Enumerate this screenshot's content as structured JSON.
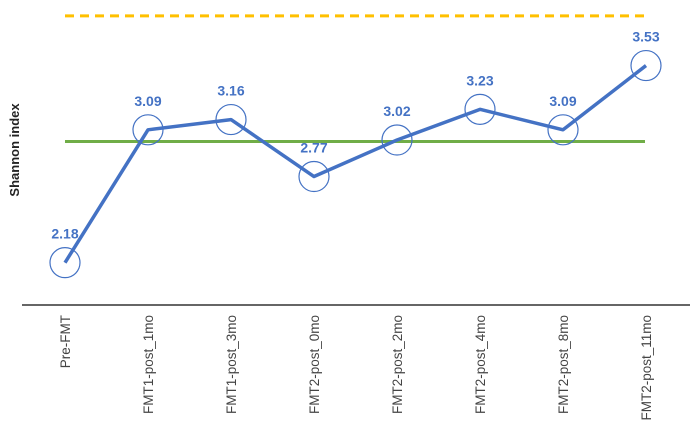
{
  "chart_data": {
    "type": "line",
    "title": "",
    "xlabel": "",
    "ylabel": "Shannon index",
    "categories": [
      "Pre-FMT",
      "FMT1-post_1mo",
      "FMT1-post_3mo",
      "FMT2-post_0mo",
      "FMT2-post_2mo",
      "FMT2-post_4mo",
      "FMT2-post_8mo",
      "FMT2-post_11mo"
    ],
    "series": [
      {
        "name": "Shannon index",
        "values": [
          2.18,
          3.09,
          3.16,
          2.77,
          3.02,
          3.23,
          3.09,
          3.53
        ],
        "labels": [
          "2.18",
          "3.09",
          "3.16",
          "2.77",
          "3.02",
          "3.23",
          "3.09",
          "3.53"
        ],
        "color": "#4472C4"
      }
    ],
    "reference_lines": [
      {
        "name": "green-reference",
        "value": 3.01,
        "color": "#70AD47",
        "style": "solid"
      },
      {
        "name": "orange-reference",
        "value": 3.87,
        "color": "#FFC000",
        "style": "dashed"
      }
    ],
    "ylim": [
      1.89,
      3.98
    ],
    "grid": false,
    "legend": "none"
  }
}
